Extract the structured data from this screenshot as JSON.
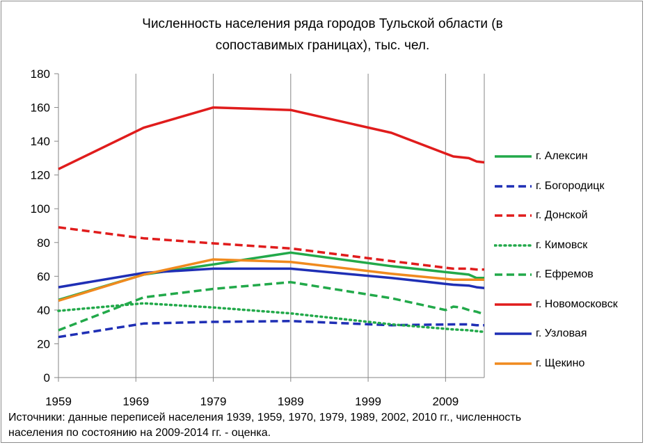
{
  "chart_data": {
    "type": "line",
    "title_lines": [
      "Численность населения ряда городов Тульской области (в",
      "сопоставимых границах), тыс. чел."
    ],
    "xlabel": "",
    "ylabel": "",
    "xlim": [
      1959,
      2014
    ],
    "ylim": [
      0,
      180
    ],
    "x_ticks": [
      "1959",
      "1969",
      "1979",
      "1989",
      "1999",
      "2009"
    ],
    "y_ticks": [
      "0",
      "20",
      "40",
      "60",
      "80",
      "100",
      "120",
      "140",
      "160",
      "180"
    ],
    "grid": "vertical",
    "legend_position": "right",
    "series": [
      {
        "name": "г. Алексин",
        "color": "#22a94a",
        "dash": "solid",
        "x": [
          1959,
          1970,
          1979,
          1989,
          2002,
          2010,
          2012,
          2013,
          2014
        ],
        "y": [
          46,
          61,
          67,
          74,
          66,
          62,
          61,
          59,
          59
        ]
      },
      {
        "name": "г. Богородицк",
        "color": "#1f2fb5",
        "dash": "dashed",
        "x": [
          1959,
          1970,
          1979,
          1989,
          2002,
          2010,
          2012,
          2013,
          2014
        ],
        "y": [
          24,
          32,
          33,
          33.5,
          31,
          31.5,
          31.5,
          31,
          31
        ]
      },
      {
        "name": "г. Донской",
        "color": "#e01c1c",
        "dash": "dashed",
        "x": [
          1959,
          1970,
          1979,
          1989,
          2002,
          2010,
          2012,
          2013,
          2014
        ],
        "y": [
          89,
          82.5,
          79.5,
          76.5,
          69,
          64.5,
          64.5,
          64,
          64
        ]
      },
      {
        "name": "г. Кимовск",
        "color": "#22a94a",
        "dash": "dotted",
        "x": [
          1959,
          1970,
          1979,
          1989,
          2002,
          2010,
          2012,
          2013,
          2014
        ],
        "y": [
          39.5,
          44,
          41.5,
          38,
          31.5,
          28.5,
          28,
          27.5,
          27
        ]
      },
      {
        "name": "г. Ефремов",
        "color": "#22a94a",
        "dash": "dashed",
        "x": [
          1959,
          1970,
          1979,
          1989,
          2002,
          2009,
          2010,
          2011,
          2012,
          2013,
          2014
        ],
        "y": [
          28,
          47.5,
          52.5,
          56.5,
          47,
          40,
          42,
          41.5,
          40,
          39,
          37.5
        ]
      },
      {
        "name": "г. Новомосковск",
        "color": "#e01c1c",
        "dash": "solid",
        "x": [
          1959,
          1970,
          1979,
          1989,
          2002,
          2010,
          2012,
          2013,
          2014
        ],
        "y": [
          123.5,
          148,
          160,
          158.5,
          145,
          131,
          130,
          128,
          127.5
        ]
      },
      {
        "name": "г. Узловая",
        "color": "#1f2fb5",
        "dash": "solid",
        "x": [
          1959,
          1970,
          1979,
          1989,
          2002,
          2010,
          2012,
          2013,
          2014
        ],
        "y": [
          53.5,
          62,
          64.5,
          64.5,
          59,
          55,
          54.5,
          53.5,
          53
        ]
      },
      {
        "name": "г. Щекино",
        "color": "#f08a1e",
        "dash": "solid",
        "x": [
          1959,
          1970,
          1979,
          1989,
          2002,
          2010,
          2012,
          2013,
          2014
        ],
        "y": [
          45.5,
          61,
          70,
          68.5,
          61.5,
          58,
          58,
          58,
          58
        ]
      }
    ]
  },
  "source_lines": [
    "Источники:  данные переписей населения 1939, 1959, 1970, 1979, 1989, 2002, 2010  гг.,  численность",
    "населения по состоянию на 2009-2014 гг. - оценка."
  ]
}
